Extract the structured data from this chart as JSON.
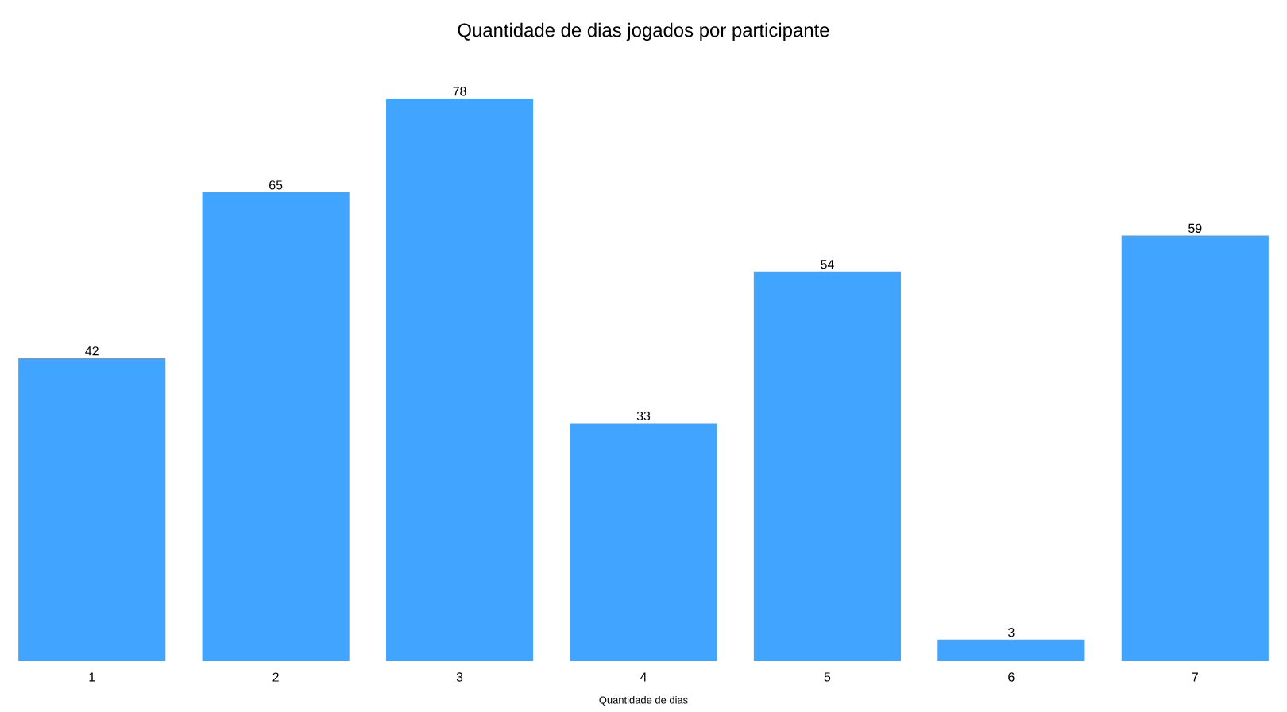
{
  "chart_data": {
    "type": "bar",
    "title": "Quantidade de dias jogados por participante",
    "xlabel": "Quantidade de dias",
    "categories": [
      "1",
      "2",
      "3",
      "4",
      "5",
      "6",
      "7"
    ],
    "values": [
      42,
      65,
      78,
      33,
      54,
      3,
      59
    ],
    "color": "#41a5ff",
    "data_labels": true
  }
}
